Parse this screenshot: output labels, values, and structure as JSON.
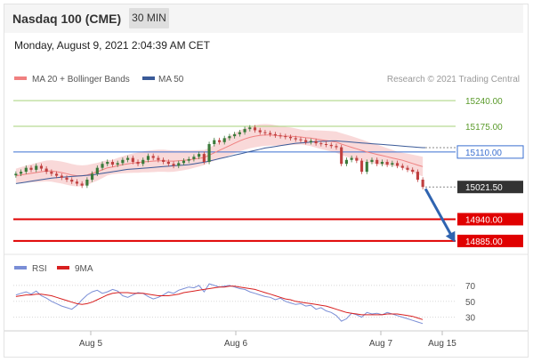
{
  "header": {
    "title": "Nasdaq 100 (CME)",
    "timeframe": "30 MIN",
    "datetime": "Monday, August 9, 2021 2:04:39 AM CET"
  },
  "legend": {
    "ma20_label": "MA 20 + Bollinger Bands",
    "ma50_label": "MA 50",
    "credit": "Research © 2021 Trading Central"
  },
  "rsi_legend": {
    "rsi_label": "RSI",
    "ma_label": "9MA"
  },
  "colors": {
    "ma20": "#f08080",
    "ma50": "#3a5a98",
    "resistance": "#a6d27a",
    "pivot": "#3a6fd0",
    "support": "#e00000",
    "current": "#333333",
    "arrow": "#2f64b0",
    "candle_up": "#3a7a3a",
    "candle_down": "#c04040",
    "bollinger": "#f7d0d0",
    "rsi": "#7a8ed6",
    "rsi_ma": "#d82020"
  },
  "chart_data": [
    {
      "type": "candlestick",
      "title": "Nasdaq 100 (CME)",
      "timeframe": "30 MIN",
      "ylim": [
        14860,
        15265
      ],
      "x_ticks": [
        "Aug 5",
        "Aug 6",
        "Aug 7",
        "Aug 15"
      ],
      "price_levels": [
        {
          "label": "15240.00",
          "value": 15240.0,
          "kind": "resistance"
        },
        {
          "label": "15175.00",
          "value": 15175.0,
          "kind": "resistance"
        },
        {
          "label": "15110.00",
          "value": 15110.0,
          "kind": "pivot"
        },
        {
          "label": "15021.50",
          "value": 15021.5,
          "kind": "current"
        },
        {
          "label": "14940.00",
          "value": 14940.0,
          "kind": "support"
        },
        {
          "label": "14885.00",
          "value": 14885.0,
          "kind": "support"
        }
      ],
      "close": [
        15055,
        15060,
        15070,
        15065,
        15075,
        15068,
        15060,
        15055,
        15050,
        15045,
        15040,
        15035,
        15030,
        15025,
        15040,
        15055,
        15070,
        15080,
        15085,
        15078,
        15082,
        15090,
        15095,
        15085,
        15080,
        15090,
        15100,
        15095,
        15090,
        15085,
        15080,
        15075,
        15082,
        15088,
        15092,
        15098,
        15105,
        15085,
        15130,
        15140,
        15135,
        15145,
        15150,
        15155,
        15160,
        15168,
        15172,
        15165,
        15160,
        15158,
        15155,
        15152,
        15150,
        15148,
        15145,
        15142,
        15140,
        15135,
        15138,
        15132,
        15130,
        15128,
        15125,
        15122,
        15080,
        15090,
        15095,
        15088,
        15060,
        15085,
        15090,
        15080,
        15085,
        15078,
        15082,
        15075,
        15070,
        15065,
        15060,
        15040,
        15021.5
      ],
      "moving_averages": [
        {
          "name": "MA 20 + Bollinger Bands",
          "values": [
            15050,
            15052,
            15054,
            15056,
            15058,
            15060,
            15062,
            15062,
            15060,
            15058,
            15055,
            15052,
            15050,
            15050,
            15052,
            15056,
            15060,
            15065,
            15070,
            15072,
            15075,
            15078,
            15080,
            15082,
            15083,
            15085,
            15086,
            15087,
            15088,
            15088,
            15087,
            15087,
            15088,
            15089,
            15090,
            15092,
            15094,
            15096,
            15102,
            15108,
            15114,
            15120,
            15126,
            15132,
            15138,
            15143,
            15147,
            15150,
            15152,
            15153,
            15153,
            15152,
            15151,
            15150,
            15150,
            15149,
            15148,
            15146,
            15145,
            15143,
            15141,
            15139,
            15137,
            15135,
            15130,
            15126,
            15122,
            15118,
            15114,
            15110,
            15107,
            15104,
            15101,
            15098,
            15095,
            15092,
            15089,
            15085,
            15081,
            15077,
            15073
          ]
        },
        {
          "name": "MA 50",
          "values": [
            15030,
            15032,
            15034,
            15036,
            15038,
            15040,
            15042,
            15044,
            15045,
            15046,
            15047,
            15048,
            15049,
            15050,
            15051,
            15052,
            15054,
            15056,
            15058,
            15060,
            15062,
            15064,
            15066,
            15067,
            15068,
            15069,
            15070,
            15071,
            15072,
            15073,
            15074,
            15075,
            15076,
            15077,
            15078,
            15080,
            15082,
            15084,
            15087,
            15090,
            15093,
            15096,
            15099,
            15102,
            15105,
            15108,
            15111,
            15114,
            15117,
            15120,
            15122,
            15124,
            15126,
            15128,
            15130,
            15132,
            15133,
            15134,
            15135,
            15136,
            15137,
            15137,
            15138,
            15138,
            15137,
            15136,
            15135,
            15134,
            15133,
            15132,
            15131,
            15130,
            15129,
            15128,
            15127,
            15126,
            15125,
            15124,
            15123,
            15122,
            15121
          ]
        }
      ]
    },
    {
      "type": "line",
      "series_labels": [
        "RSI",
        "9MA"
      ],
      "ylim": [
        15,
        80
      ],
      "y_ticks": [
        70,
        50,
        30
      ],
      "series": [
        {
          "name": "RSI",
          "values": [
            58,
            60,
            62,
            59,
            63,
            57,
            54,
            50,
            47,
            44,
            42,
            40,
            45,
            52,
            58,
            62,
            64,
            60,
            62,
            65,
            63,
            57,
            55,
            58,
            61,
            60,
            56,
            53,
            55,
            58,
            62,
            60,
            64,
            66,
            68,
            67,
            70,
            62,
            72,
            70,
            68,
            69,
            70,
            68,
            66,
            65,
            62,
            60,
            58,
            56,
            55,
            52,
            54,
            50,
            48,
            46,
            47,
            44,
            45,
            40,
            42,
            38,
            36,
            32,
            25,
            28,
            35,
            33,
            30,
            36,
            34,
            35,
            33,
            36,
            34,
            32,
            30,
            28,
            26,
            24,
            22
          ]
        },
        {
          "name": "9MA",
          "values": [
            56,
            57,
            58,
            58,
            59,
            59,
            58,
            57,
            55,
            53,
            51,
            49,
            47,
            46,
            47,
            49,
            52,
            55,
            58,
            60,
            61,
            61,
            61,
            60,
            60,
            60,
            59,
            58,
            57,
            57,
            57,
            58,
            59,
            61,
            62,
            63,
            64,
            65,
            66,
            67,
            68,
            68,
            69,
            69,
            68,
            67,
            66,
            65,
            63,
            61,
            59,
            57,
            55,
            53,
            52,
            50,
            49,
            48,
            47,
            46,
            45,
            44,
            42,
            40,
            38,
            36,
            35,
            34,
            33,
            33,
            33,
            33,
            33,
            34,
            34,
            34,
            33,
            32,
            31,
            29,
            27
          ]
        }
      ]
    }
  ]
}
